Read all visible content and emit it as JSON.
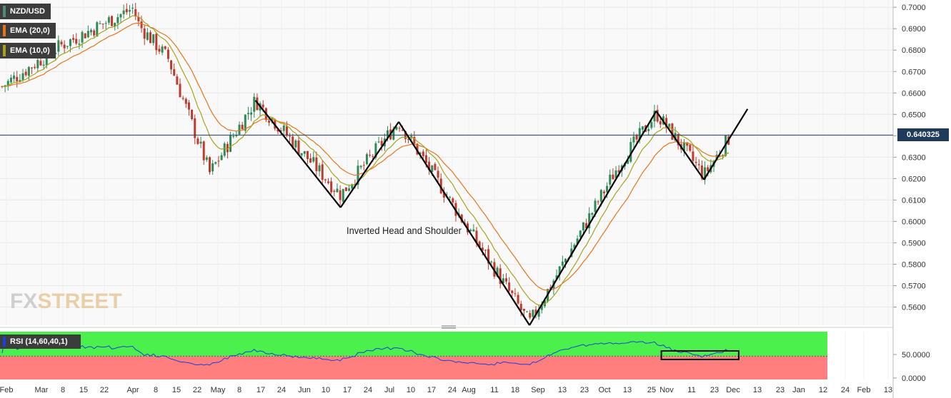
{
  "legend": {
    "symbol": "NZD/USD",
    "ema20_label": "EMA (20,0)",
    "ema10_label": "EMA (10,0)",
    "rsi_label": "RSI (14,60,40,1)"
  },
  "colors": {
    "background": "#f9f9f9",
    "up_candle": "#2e8b57",
    "down_candle": "#c0392b",
    "ema20": "#e8741c",
    "ema10": "#a7a21e",
    "price_line": "#24406b",
    "rsi_line": "#1c3fd6",
    "rsi_overbought_zone": "#4cf04c",
    "rsi_oversold_zone": "#ff7f7f",
    "annotation": "#000000",
    "watermark": "#e9cfa8"
  },
  "watermark": {
    "left": "FX",
    "right": "STREET"
  },
  "annotation_text": "Inverted Head  and Shoulder",
  "current_price": "0.640325",
  "chart_data": [
    {
      "type": "candlestick",
      "title": "NZD/USD",
      "ylim": [
        0.5515,
        0.7034
      ],
      "y_ticks": [
        "0.7000",
        "0.6900",
        "0.6800",
        "0.6700",
        "0.6600",
        "0.6500",
        "0.6400",
        "0.6300",
        "0.6200",
        "0.6100",
        "0.6000",
        "0.5900",
        "0.5800",
        "0.5700",
        "0.5600"
      ],
      "x_tick_labels": [
        "Feb",
        "Mar",
        "8",
        "15",
        "22",
        "Apr",
        "8",
        "15",
        "22",
        "May",
        "8",
        "17",
        "24",
        "Jun",
        "10",
        "17",
        "24",
        "Jul",
        "10",
        "17",
        "24",
        "Aug",
        "11",
        "18",
        "Sep",
        "13",
        "23",
        "Oct",
        "13",
        "25",
        "Nov",
        "11",
        "23",
        "Dec",
        "13",
        "23",
        "Jan",
        "12",
        "24",
        "Feb",
        "13"
      ],
      "price_path_key_levels": [
        {
          "date": "Feb start",
          "value": 0.663
        },
        {
          "date": "Mar",
          "value": 0.682
        },
        {
          "date": "Apr 5",
          "value": 0.6995
        },
        {
          "date": "Apr 8",
          "value": 0.6915
        },
        {
          "date": "Apr 22",
          "value": 0.676
        },
        {
          "date": "May 12",
          "value": 0.6225
        },
        {
          "date": "Jun 3",
          "value": 0.6565
        },
        {
          "date": "Jul 14",
          "value": 0.6125
        },
        {
          "date": "Aug 11",
          "value": 0.6465
        },
        {
          "date": "Oct 13",
          "value": 0.5525
        },
        {
          "date": "Nov 25",
          "value": 0.6265
        },
        {
          "date": "Dec 13",
          "value": 0.6505
        },
        {
          "date": "Jan 5",
          "value": 0.6215
        },
        {
          "date": "Jan 18",
          "value": 0.6403
        }
      ],
      "series": [
        {
          "name": "EMA (20,0)",
          "kind": "line"
        },
        {
          "name": "EMA (10,0)",
          "kind": "line"
        }
      ],
      "horizontal_line": 0.640325,
      "pattern_lines": [
        [
          {
            "date": "Jun 3",
            "value": 0.6565
          },
          {
            "date": "Jul 14",
            "value": 0.6065
          }
        ],
        [
          {
            "date": "Jul 14",
            "value": 0.6065
          },
          {
            "date": "Aug 11",
            "value": 0.6465
          }
        ],
        [
          {
            "date": "Aug 11",
            "value": 0.6465
          },
          {
            "date": "Oct 13",
            "value": 0.5515
          }
        ],
        [
          {
            "date": "Oct 13",
            "value": 0.5515
          },
          {
            "date": "Dec 13",
            "value": 0.6515
          }
        ],
        [
          {
            "date": "Dec 13",
            "value": 0.6515
          },
          {
            "date": "Jan 5",
            "value": 0.6195
          }
        ],
        [
          {
            "date": "Jan 5",
            "value": 0.6195
          },
          {
            "date": "Jan 26",
            "value": 0.6525
          }
        ]
      ],
      "grid": true
    },
    {
      "type": "line",
      "title": "RSI (14,60,40,1)",
      "ylim": [
        0,
        60
      ],
      "y_ticks": [
        "50.0000",
        "0.0000"
      ],
      "overbought": 60,
      "oversold": 40,
      "highlight_box": {
        "from": "Jan 1",
        "to": "Jan 19"
      }
    }
  ]
}
